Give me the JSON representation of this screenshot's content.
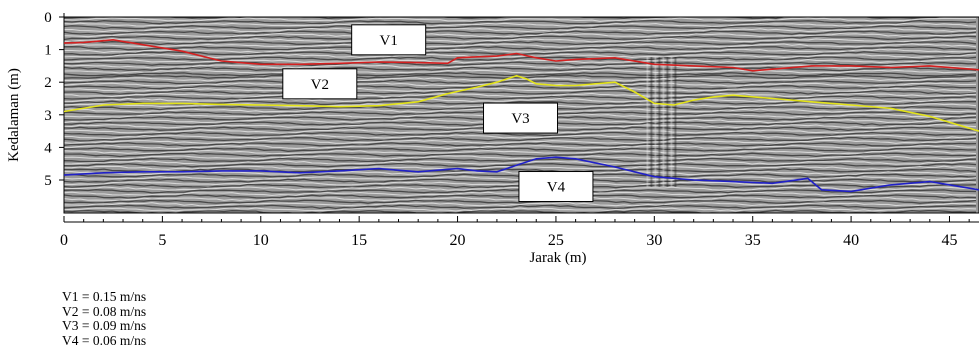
{
  "chart_data": {
    "type": "line",
    "xlabel": "Jarak (m)",
    "ylabel": "Kedalaman (m)",
    "xlim": [
      0,
      46.5
    ],
    "ylim": [
      0,
      6.2
    ],
    "y_inverted": true,
    "xticks": [
      0,
      5,
      10,
      15,
      20,
      25,
      30,
      35,
      40,
      45
    ],
    "yticks": [
      0,
      1,
      2,
      3,
      4,
      5
    ],
    "background": "GPR radargram (grayscale reflection texture)",
    "series": [
      {
        "name": "V1",
        "color": "#d42020",
        "points": [
          [
            0,
            0.8
          ],
          [
            1,
            0.78
          ],
          [
            2.5,
            0.7
          ],
          [
            4,
            0.85
          ],
          [
            6,
            1.05
          ],
          [
            8,
            1.35
          ],
          [
            10,
            1.45
          ],
          [
            12,
            1.45
          ],
          [
            14,
            1.42
          ],
          [
            16,
            1.38
          ],
          [
            18,
            1.4
          ],
          [
            19.5,
            1.42
          ],
          [
            20,
            1.25
          ],
          [
            21,
            1.22
          ],
          [
            22,
            1.2
          ],
          [
            23,
            1.12
          ],
          [
            24,
            1.25
          ],
          [
            25,
            1.35
          ],
          [
            26,
            1.3
          ],
          [
            28,
            1.25
          ],
          [
            30,
            1.45
          ],
          [
            32,
            1.5
          ],
          [
            34,
            1.55
          ],
          [
            35,
            1.65
          ],
          [
            36,
            1.6
          ],
          [
            38,
            1.5
          ],
          [
            40,
            1.5
          ],
          [
            42,
            1.55
          ],
          [
            44,
            1.5
          ],
          [
            46.5,
            1.62
          ]
        ]
      },
      {
        "name": "V2",
        "color": "#e3e31a",
        "points": [
          [
            0,
            2.9
          ],
          [
            2,
            2.7
          ],
          [
            4,
            2.65
          ],
          [
            6,
            2.65
          ],
          [
            8,
            2.68
          ],
          [
            10,
            2.7
          ],
          [
            12,
            2.72
          ],
          [
            14,
            2.75
          ],
          [
            16,
            2.72
          ],
          [
            18,
            2.6
          ],
          [
            19.5,
            2.35
          ],
          [
            21,
            2.15
          ],
          [
            22,
            2.0
          ],
          [
            23,
            1.8
          ],
          [
            23.5,
            1.9
          ],
          [
            24,
            2.05
          ],
          [
            25,
            2.1
          ],
          [
            26,
            2.1
          ],
          [
            27,
            2.05
          ],
          [
            28,
            2.0
          ],
          [
            29,
            2.3
          ],
          [
            30,
            2.65
          ],
          [
            31,
            2.7
          ],
          [
            32,
            2.55
          ],
          [
            33,
            2.45
          ],
          [
            34,
            2.4
          ],
          [
            36,
            2.5
          ],
          [
            38,
            2.6
          ],
          [
            40,
            2.7
          ],
          [
            42,
            2.8
          ],
          [
            44,
            3.05
          ],
          [
            46.5,
            3.5
          ]
        ]
      },
      {
        "name": "V4",
        "color": "#2020c8",
        "points": [
          [
            0,
            4.85
          ],
          [
            2,
            4.78
          ],
          [
            4,
            4.75
          ],
          [
            6,
            4.75
          ],
          [
            8,
            4.72
          ],
          [
            10,
            4.72
          ],
          [
            12,
            4.78
          ],
          [
            14,
            4.72
          ],
          [
            16,
            4.65
          ],
          [
            18,
            4.75
          ],
          [
            20,
            4.65
          ],
          [
            21,
            4.72
          ],
          [
            22,
            4.75
          ],
          [
            23,
            4.55
          ],
          [
            24,
            4.35
          ],
          [
            25,
            4.3
          ],
          [
            26,
            4.35
          ],
          [
            28,
            4.6
          ],
          [
            30,
            4.9
          ],
          [
            32,
            5.0
          ],
          [
            34,
            5.05
          ],
          [
            36,
            5.1
          ],
          [
            37.8,
            4.95
          ],
          [
            38.5,
            5.3
          ],
          [
            40,
            5.35
          ],
          [
            42,
            5.15
          ],
          [
            44,
            5.05
          ],
          [
            46.5,
            5.3
          ]
        ]
      }
    ],
    "annotations": [
      {
        "label": "V1",
        "x": 16.5,
        "y": 0.7
      },
      {
        "label": "V2",
        "x": 13,
        "y": 2.05
      },
      {
        "label": "V3",
        "x": 23.2,
        "y": 3.1
      },
      {
        "label": "V4",
        "x": 25,
        "y": 5.2
      }
    ]
  },
  "legend": [
    "V1 = 0.15 m/ns",
    "V2 = 0.08 m/ns",
    "V3 = 0.09 m/ns",
    "V4 = 0.06 m/ns"
  ]
}
